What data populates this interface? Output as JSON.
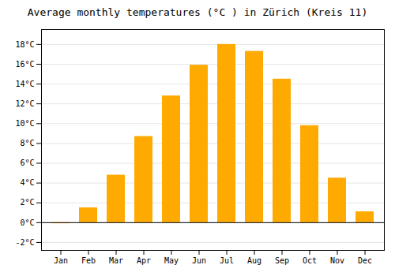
{
  "chart_data": {
    "type": "bar",
    "title": "Average monthly temperatures (°C ) in Zürich (Kreis 11)",
    "categories": [
      "Jan",
      "Feb",
      "Mar",
      "Apr",
      "May",
      "Jun",
      "Jul",
      "Aug",
      "Sep",
      "Oct",
      "Nov",
      "Dec"
    ],
    "values": [
      -0.1,
      1.5,
      4.8,
      8.7,
      12.8,
      15.9,
      18.0,
      17.3,
      14.5,
      9.8,
      4.5,
      1.1
    ],
    "color": "#FFAA00",
    "ylim": [
      -2.8,
      19.5
    ],
    "yticks": [
      {
        "value": -2,
        "label": "-2°C"
      },
      {
        "value": 0,
        "label": "0°C"
      },
      {
        "value": 2,
        "label": "2°C"
      },
      {
        "value": 4,
        "label": "4°C"
      },
      {
        "value": 6,
        "label": "6°C"
      },
      {
        "value": 8,
        "label": "8°C"
      },
      {
        "value": 10,
        "label": "10°C"
      },
      {
        "value": 12,
        "label": "12°C"
      },
      {
        "value": 14,
        "label": "14°C"
      },
      {
        "value": 16,
        "label": "16°C"
      },
      {
        "value": 18,
        "label": "18°C"
      }
    ],
    "grid": true
  }
}
